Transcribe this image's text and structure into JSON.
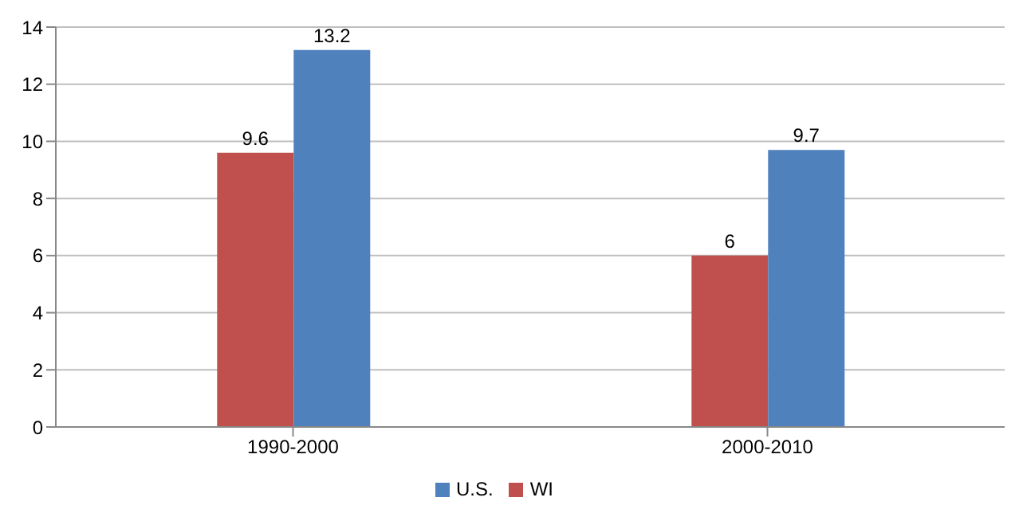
{
  "chart_data": {
    "type": "bar",
    "categories": [
      "1990-2000",
      "2000-2010"
    ],
    "series": [
      {
        "name": "WI",
        "color": "#c0504d",
        "values": [
          9.6,
          6
        ]
      },
      {
        "name": "U.S.",
        "color": "#4f81bd",
        "values": [
          13.2,
          9.7
        ]
      }
    ],
    "ylim": [
      0,
      14
    ],
    "yticks": [
      0,
      2,
      4,
      6,
      8,
      10,
      12,
      14
    ],
    "grid": "y",
    "legend": "bottom",
    "data_labels": true
  }
}
